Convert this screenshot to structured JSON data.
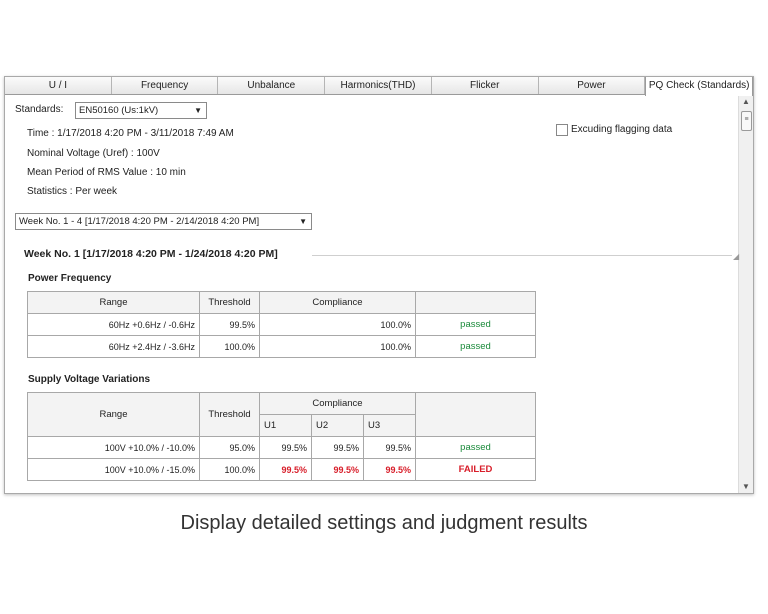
{
  "tabs": [
    "U / I",
    "Frequency",
    "Unbalance",
    "Harmonics(THD)",
    "Flicker",
    "Power",
    "PQ Check (Standards)"
  ],
  "standards_label": "Standards:",
  "standards_value": "EN50160 (Us:1kV)",
  "excluding_label": "Excuding flagging data",
  "info": {
    "time": "Time :  1/17/2018 4:20 PM - 3/11/2018 7:49 AM",
    "nominal": "Nominal Voltage (Uref) :  100V",
    "mean": "Mean Period of RMS Value :  10 min",
    "statistics": "Statistics :  Per week"
  },
  "week_select": "Week No. 1 - 4 [1/17/2018 4:20 PM - 2/14/2018 4:20 PM]",
  "week_title": "Week No. 1 [1/17/2018 4:20 PM - 1/24/2018 4:20 PM]",
  "power_frequency": {
    "title": "Power Frequency",
    "headers": {
      "range": "Range",
      "threshold": "Threshold",
      "compliance": "Compliance"
    },
    "rows": [
      {
        "range": "60Hz +0.6Hz / -0.6Hz",
        "threshold": "99.5%",
        "compliance": "100.0%",
        "status": "passed"
      },
      {
        "range": "60Hz +2.4Hz / -3.6Hz",
        "threshold": "100.0%",
        "compliance": "100.0%",
        "status": "passed"
      }
    ]
  },
  "supply_voltage": {
    "title": "Supply Voltage Variations",
    "headers": {
      "range": "Range",
      "threshold": "Threshold",
      "compliance": "Compliance",
      "u1": "U1",
      "u2": "U2",
      "u3": "U3"
    },
    "rows": [
      {
        "range": "100V  +10.0% / -10.0%",
        "threshold": "95.0%",
        "u1": "99.5%",
        "u2": "99.5%",
        "u3": "99.5%",
        "status": "passed"
      },
      {
        "range": "100V  +10.0% / -15.0%",
        "threshold": "100.0%",
        "u1": "99.5%",
        "u2": "99.5%",
        "u3": "99.5%",
        "status": "FAILED"
      }
    ]
  },
  "caption": "Display detailed settings and judgment results",
  "colors": {
    "passed": "#1a8a3a",
    "failed": "#d81e2a"
  }
}
